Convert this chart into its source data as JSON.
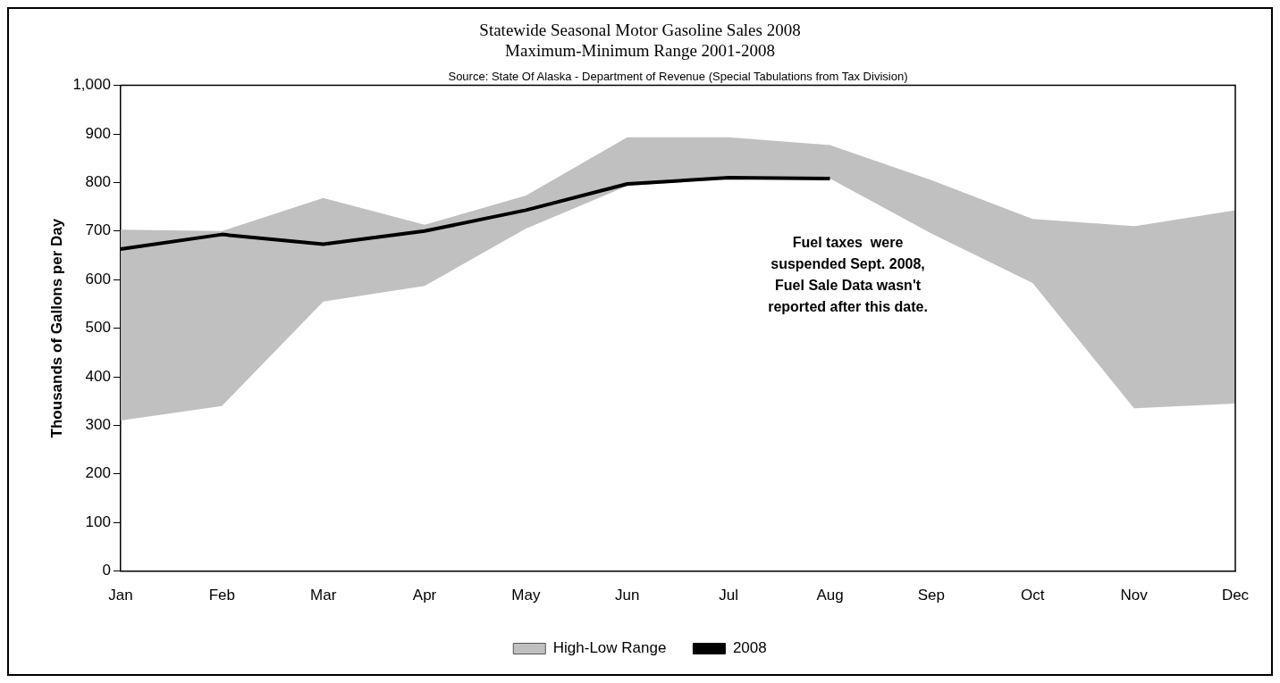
{
  "chart_data": {
    "type": "line",
    "title": "Statewide Seasonal Motor Gasoline Sales 2008",
    "subtitle": "Maximum-Minimum Range 2001-2008",
    "ylabel": "Thousands of Gallons per Day",
    "annotations": [
      "Source: State Of Alaska - Department of Revenue (Special Tabulations from Tax Division)",
      "Fuel taxes  were suspended Sept. 2008, Fuel Sale Data wasn't reported after this date."
    ],
    "categories": [
      "Jan",
      "Feb",
      "Mar",
      "Apr",
      "May",
      "Jun",
      "Jul",
      "Aug",
      "Sep",
      "Oct",
      "Nov",
      "Dec"
    ],
    "series": [
      {
        "name": "High-Low Range",
        "type": "area",
        "color": "#c0c0c0",
        "values": [
          null,
          null,
          null,
          null,
          null,
          null,
          null,
          null,
          null,
          null,
          null,
          null
        ],
        "lower": [
          310,
          340,
          555,
          587,
          705,
          793,
          808,
          808,
          695,
          593,
          335,
          345
        ],
        "upper": [
          703,
          700,
          768,
          713,
          773,
          893,
          893,
          877,
          805,
          725,
          710,
          743
        ]
      },
      {
        "name": "2008",
        "type": "line",
        "color": "#000000",
        "values": [
          663,
          693,
          673,
          700,
          743,
          797,
          810,
          808,
          null,
          null,
          null,
          null
        ]
      }
    ],
    "ylim": [
      0,
      1000
    ],
    "yticks": [
      0,
      100,
      200,
      300,
      400,
      500,
      600,
      700,
      800,
      900,
      {
        "value": 1000,
        "label": "1,000"
      }
    ],
    "grid": false,
    "legend": "bottom",
    "marker": "none",
    "line_style": "solid"
  }
}
